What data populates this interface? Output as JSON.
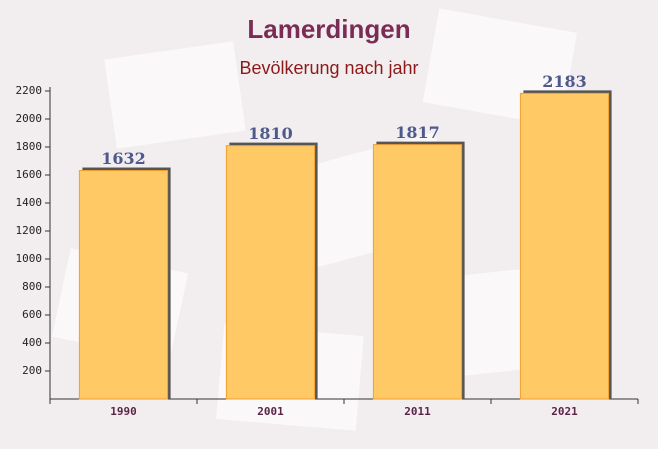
{
  "chart_data": {
    "type": "bar",
    "title": "Lamerdingen",
    "subtitle": "Bevölkerung nach jahr",
    "categories": [
      "1990",
      "2001",
      "2011",
      "2021"
    ],
    "values": [
      1632,
      1810,
      1817,
      2183
    ],
    "color": "#ffc966",
    "ylim": [
      0,
      2200
    ],
    "yticks": [
      200,
      400,
      600,
      800,
      1000,
      1200,
      1400,
      1600,
      1800,
      2000,
      2200
    ],
    "grid": false
  }
}
